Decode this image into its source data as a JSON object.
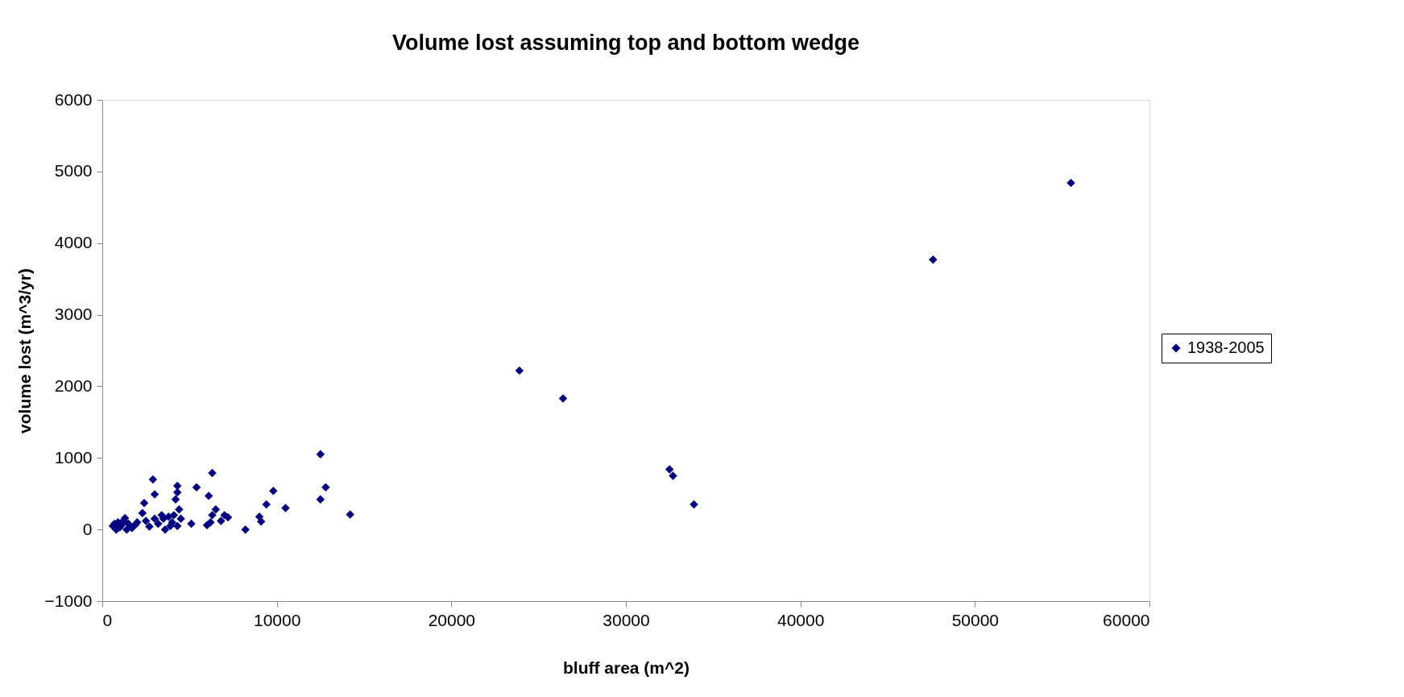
{
  "chart_data": {
    "type": "scatter",
    "title": "Volume lost assuming top and bottom wedge",
    "xlabel": "bluff area (m^2)",
    "ylabel": "volume lost (m^3/yr)",
    "xlim": [
      0,
      60000
    ],
    "xticks": [
      0,
      10000,
      20000,
      30000,
      40000,
      50000,
      60000
    ],
    "ylim": [
      -1000,
      6000
    ],
    "yticks": [
      -1000,
      0,
      1000,
      2000,
      3000,
      4000,
      5000,
      6000
    ],
    "grid": false,
    "legend": "right",
    "marker": "diamond",
    "series": [
      {
        "name": "1938-2005",
        "color": "#000080",
        "x": [
          55500,
          47600,
          23900,
          26400,
          32500,
          32700,
          33900,
          12500,
          12500,
          12800,
          14200,
          9800,
          9400,
          9000,
          9100,
          10500,
          8200,
          6300,
          6100,
          5400,
          6000,
          6200,
          6500,
          6300,
          6800,
          7000,
          7200,
          5100,
          4300,
          4300,
          4200,
          4400,
          4500,
          4300,
          4100,
          2900,
          3000,
          2400,
          2300,
          2500,
          2700,
          3200,
          3500,
          3600,
          3800,
          3400,
          3000,
          3900,
          4000,
          600,
          800,
          900,
          1000,
          1200,
          1300,
          1400,
          1500,
          1700,
          1900,
          2000,
          1100,
          700
        ],
        "values": [
          4840,
          3770,
          2220,
          1830,
          840,
          750,
          350,
          1050,
          420,
          590,
          210,
          540,
          350,
          180,
          110,
          300,
          0,
          790,
          470,
          590,
          60,
          100,
          280,
          200,
          120,
          200,
          170,
          80,
          610,
          520,
          420,
          280,
          150,
          50,
          200,
          700,
          490,
          370,
          230,
          120,
          40,
          80,
          150,
          0,
          180,
          200,
          150,
          50,
          100,
          50,
          0,
          100,
          30,
          120,
          160,
          0,
          80,
          20,
          70,
          100,
          60,
          80
        ]
      }
    ]
  }
}
